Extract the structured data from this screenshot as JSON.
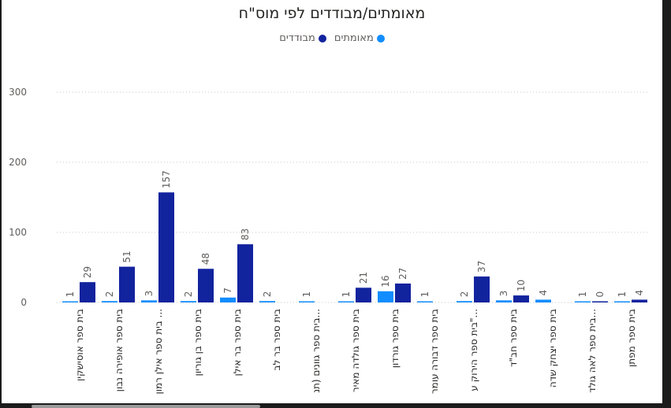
{
  "chart_data": {
    "type": "bar",
    "title": "מאומתים/מבודדים לפי מוס\"ח",
    "xlabel": "",
    "ylabel": "",
    "ylim": [
      0,
      300
    ],
    "yticks": [
      0,
      100,
      200,
      300
    ],
    "grid": true,
    "legend_position": "top-center",
    "categories": [
      "בית ספר אוסישקין",
      "בית ספר אופירה נבון",
      "בית ספר אילן רמון ...",
      "בית ספר בן גוריון",
      "בית ספר בר אילן",
      "בית ספר בר לב",
      "בית ספר גוונים (תנ...",
      "בית ספר גולדה מאיר",
      "בית ספר גורדון",
      "בית ספר דבורה עומר",
      "בית ספר הירוק ע\"...",
      "בית ספר חב\"ד",
      "בית ספר יצחק שדה",
      "בית ספר לאה גולד...",
      "בית ספר מפתן"
    ],
    "series": [
      {
        "name": "מאומתים",
        "color": "#118dff",
        "values": [
          1,
          2,
          3,
          2,
          7,
          2,
          1,
          1,
          16,
          1,
          2,
          3,
          4,
          1,
          1
        ]
      },
      {
        "name": "מבודדים",
        "color": "#12239e",
        "values": [
          29,
          51,
          157,
          48,
          83,
          null,
          null,
          21,
          27,
          null,
          37,
          10,
          null,
          0,
          4
        ]
      }
    ]
  }
}
